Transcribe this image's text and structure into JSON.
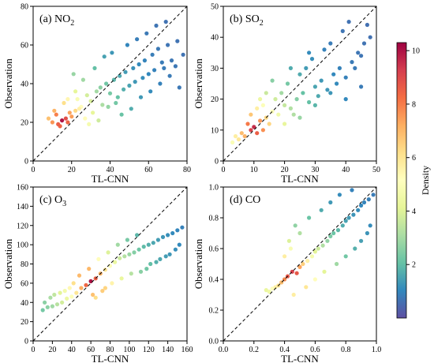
{
  "chart_data": [
    {
      "type": "scatter",
      "panel_label": "(a) NO",
      "panel_sub": "2",
      "xlabel": "TL-CNN",
      "ylabel": "Observation",
      "xlim": [
        0,
        80
      ],
      "ylim": [
        0,
        80
      ],
      "xticks": [
        "0",
        "20",
        "40",
        "60",
        "80"
      ],
      "yticks": [
        "0",
        "20",
        "40",
        "60",
        "80"
      ],
      "reference_line": "1:1 dashed",
      "density_peak": {
        "x": 15,
        "y": 21
      },
      "series": [
        {
          "x": [
            13,
            15,
            17,
            12,
            18,
            20,
            22,
            25,
            16,
            14,
            19,
            23,
            28,
            30,
            33,
            35,
            38,
            40,
            42,
            45,
            48,
            50,
            52,
            55,
            58,
            60,
            62,
            65,
            68,
            70,
            72,
            75,
            78,
            24,
            27,
            31,
            36,
            44,
            47,
            53,
            57,
            63,
            67,
            74,
            10,
            8,
            21,
            26,
            29,
            34,
            39,
            43,
            46,
            51,
            56,
            61,
            66,
            71,
            76,
            37,
            41,
            49,
            54,
            59,
            64,
            69,
            32,
            22,
            18,
            11
          ],
          "y": [
            19,
            21,
            22,
            24,
            20,
            23,
            26,
            28,
            30,
            18,
            25,
            32,
            34,
            31,
            36,
            38,
            40,
            35,
            42,
            44,
            46,
            39,
            48,
            50,
            52,
            45,
            55,
            58,
            48,
            60,
            52,
            62,
            55,
            27,
            22,
            25,
            29,
            33,
            37,
            41,
            43,
            47,
            51,
            49,
            20,
            22,
            45,
            42,
            19,
            21,
            28,
            30,
            24,
            27,
            33,
            36,
            40,
            44,
            38,
            54,
            56,
            60,
            63,
            66,
            70,
            72,
            48,
            36,
            32,
            26
          ]
        }
      ]
    },
    {
      "type": "scatter",
      "panel_label": "(b) SO",
      "panel_sub": "2",
      "xlabel": "TL-CNN",
      "ylabel": "Observation",
      "xlim": [
        0,
        50
      ],
      "ylim": [
        0,
        50
      ],
      "xticks": [
        "0",
        "10",
        "20",
        "30",
        "40",
        "50"
      ],
      "yticks": [
        "0",
        "10",
        "20",
        "30",
        "40",
        "50"
      ],
      "reference_line": "1:1 dashed",
      "density_peak": {
        "x": 10,
        "y": 10.5
      },
      "series": [
        {
          "x": [
            9,
            10,
            11,
            8,
            12,
            13,
            7,
            6,
            14,
            15,
            16,
            18,
            20,
            22,
            24,
            26,
            28,
            30,
            32,
            34,
            36,
            38,
            40,
            42,
            44,
            46,
            48,
            5,
            4,
            3,
            17,
            19,
            21,
            23,
            25,
            27,
            29,
            31,
            33,
            35,
            37,
            39,
            41,
            43,
            45,
            12,
            14,
            16,
            20,
            25,
            30,
            35,
            40,
            45,
            47,
            11,
            13,
            9,
            22,
            28
          ],
          "y": [
            10,
            11,
            9,
            12,
            13,
            10,
            8,
            9,
            14,
            12,
            16,
            15,
            18,
            17,
            20,
            22,
            19,
            24,
            26,
            23,
            28,
            30,
            27,
            32,
            35,
            38,
            40,
            7,
            8,
            6,
            20,
            22,
            25,
            15,
            28,
            30,
            33,
            21,
            36,
            38,
            25,
            42,
            45,
            30,
            34,
            20,
            22,
            26,
            12,
            14,
            18,
            22,
            20,
            24,
            44,
            17,
            18,
            15,
            30,
            35
          ]
        }
      ]
    },
    {
      "type": "scatter",
      "panel_label": "(c) O",
      "panel_sub": "3",
      "xlabel": "TL-CNN",
      "ylabel": "Observation",
      "xlim": [
        0,
        160
      ],
      "ylim": [
        0,
        160
      ],
      "xticks": [
        "0",
        "20",
        "40",
        "60",
        "80",
        "100",
        "120",
        "140",
        "160"
      ],
      "yticks": [
        "0",
        "20",
        "40",
        "60",
        "80",
        "100",
        "120",
        "140",
        "160"
      ],
      "reference_line": "1:1 dashed",
      "density_peak": {
        "x": 60,
        "y": 62
      },
      "series": [
        {
          "x": [
            55,
            60,
            65,
            50,
            70,
            45,
            75,
            40,
            80,
            35,
            85,
            30,
            90,
            25,
            95,
            20,
            100,
            15,
            105,
            110,
            115,
            120,
            125,
            130,
            135,
            140,
            145,
            150,
            155,
            10,
            58,
            62,
            68,
            72,
            78,
            82,
            88,
            92,
            98,
            102,
            108,
            112,
            118,
            122,
            128,
            132,
            138,
            142,
            148,
            152,
            48,
            42,
            38,
            33,
            28,
            22,
            18,
            12,
            65,
            75
          ],
          "y": [
            58,
            62,
            65,
            55,
            70,
            50,
            74,
            46,
            78,
            44,
            82,
            40,
            86,
            38,
            88,
            36,
            90,
            35,
            92,
            95,
            98,
            100,
            102,
            105,
            108,
            110,
            112,
            115,
            118,
            32,
            75,
            48,
            85,
            52,
            92,
            60,
            100,
            65,
            105,
            70,
            110,
            72,
            75,
            80,
            82,
            85,
            88,
            90,
            95,
            100,
            68,
            60,
            55,
            52,
            50,
            48,
            45,
            40,
            45,
            55
          ]
        }
      ]
    },
    {
      "type": "scatter",
      "panel_label": "(d) CO",
      "panel_sub": "",
      "xlabel": "TL-CNN",
      "ylabel": "Observation",
      "xlim": [
        0,
        1.0
      ],
      "ylim": [
        0,
        1.0
      ],
      "xticks": [
        "0.0",
        "0.2",
        "0.4",
        "0.6",
        "0.8",
        "1.0"
      ],
      "yticks": [
        "0.0",
        "0.2",
        "0.4",
        "0.6",
        "0.8",
        "1.0"
      ],
      "reference_line": "1:1 dashed",
      "density_peak": {
        "x": 0.45,
        "y": 0.43
      },
      "series": [
        {
          "x": [
            0.42,
            0.45,
            0.48,
            0.4,
            0.5,
            0.38,
            0.52,
            0.36,
            0.55,
            0.34,
            0.58,
            0.32,
            0.6,
            0.62,
            0.65,
            0.68,
            0.7,
            0.72,
            0.75,
            0.78,
            0.8,
            0.82,
            0.85,
            0.88,
            0.9,
            0.92,
            0.95,
            0.98,
            0.3,
            0.28,
            0.44,
            0.46,
            0.5,
            0.54,
            0.56,
            0.6,
            0.64,
            0.66,
            0.7,
            0.74,
            0.76,
            0.8,
            0.84,
            0.86,
            0.9,
            0.94,
            0.96,
            0.4,
            0.43,
            0.47
          ],
          "y": [
            0.42,
            0.45,
            0.44,
            0.4,
            0.48,
            0.38,
            0.5,
            0.36,
            0.52,
            0.35,
            0.55,
            0.34,
            0.58,
            0.6,
            0.62,
            0.65,
            0.68,
            0.7,
            0.72,
            0.75,
            0.78,
            0.8,
            0.82,
            0.85,
            0.88,
            0.9,
            0.92,
            0.95,
            0.32,
            0.33,
            0.6,
            0.3,
            0.7,
            0.35,
            0.8,
            0.4,
            0.85,
            0.45,
            0.9,
            0.5,
            0.95,
            0.55,
            0.98,
            0.6,
            0.65,
            0.7,
            0.75,
            0.55,
            0.65,
            0.75
          ]
        }
      ]
    }
  ],
  "colorbar": {
    "label": "Density",
    "range": [
      0,
      10.3
    ],
    "ticks": [
      "2",
      "4",
      "6",
      "8",
      "10"
    ],
    "colormap": "Spectral_r",
    "stops": [
      "#5e4fa2",
      "#3288bd",
      "#66c2a5",
      "#abdda4",
      "#e6f598",
      "#ffffbf",
      "#fee08b",
      "#fdae61",
      "#f46d43",
      "#d53e4f",
      "#9e0142"
    ]
  }
}
